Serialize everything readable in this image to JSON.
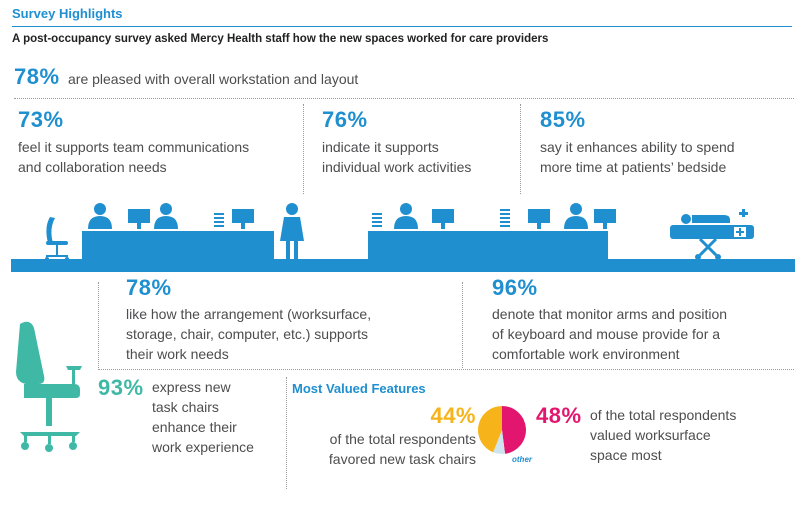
{
  "header": {
    "title": "Survey Highlights",
    "subtitle": "A post-occupancy survey asked Mercy Health staff how the new spaces worked for care providers"
  },
  "stats": {
    "overall": {
      "pct": "78%",
      "text": "are pleased with overall workstation and layout"
    },
    "team": {
      "pct": "73%",
      "line1": "feel it supports team communications",
      "line2": "and collaboration needs"
    },
    "individual": {
      "pct": "76%",
      "line1": "indicate it supports",
      "line2": "individual work activities"
    },
    "bedside": {
      "pct": "85%",
      "line1": "say it enhances ability to spend",
      "line2": "more time at patients’ bedside"
    },
    "arrangement": {
      "pct": "78%",
      "line1": "like how the arrangement (worksurface,",
      "line2": "storage, chair, computer, etc.) supports",
      "line3": "their work needs"
    },
    "monitor": {
      "pct": "96%",
      "line1": "denote that monitor arms and position",
      "line2": "of keyboard and mouse provide for a",
      "line3": "comfortable work environment"
    },
    "chairs": {
      "pct": "93%",
      "line1": "express new",
      "line2": "task chairs",
      "line3": "enhance their",
      "line4": "work experience"
    }
  },
  "features": {
    "heading": "Most Valued Features",
    "chairs": {
      "pct": "44%",
      "line1": "of the total respondents",
      "line2": "favored new task chairs"
    },
    "worksurface": {
      "pct": "48%",
      "line1": "of the total respondents",
      "line2": "valued worksurface",
      "line3": "space most"
    },
    "other_label": "other"
  },
  "pie_data": {
    "slices": [
      {
        "label": "worksurface",
        "value": 48,
        "color": "#e2166e"
      },
      {
        "label": "other",
        "value": 8,
        "color": "#cfe4ef"
      },
      {
        "label": "chairs",
        "value": 44,
        "color": "#f6b41a"
      }
    ]
  },
  "colors": {
    "blue": "#1f8fd0",
    "teal": "#3fb8a6",
    "magenta": "#e2166e",
    "orange": "#f6b41a",
    "text": "#4d4d4f"
  },
  "icons": [
    "office-chair-icon",
    "person-icon",
    "monitor-icon",
    "document-stack-icon",
    "patient-bed-icon",
    "task-chair-icon"
  ]
}
